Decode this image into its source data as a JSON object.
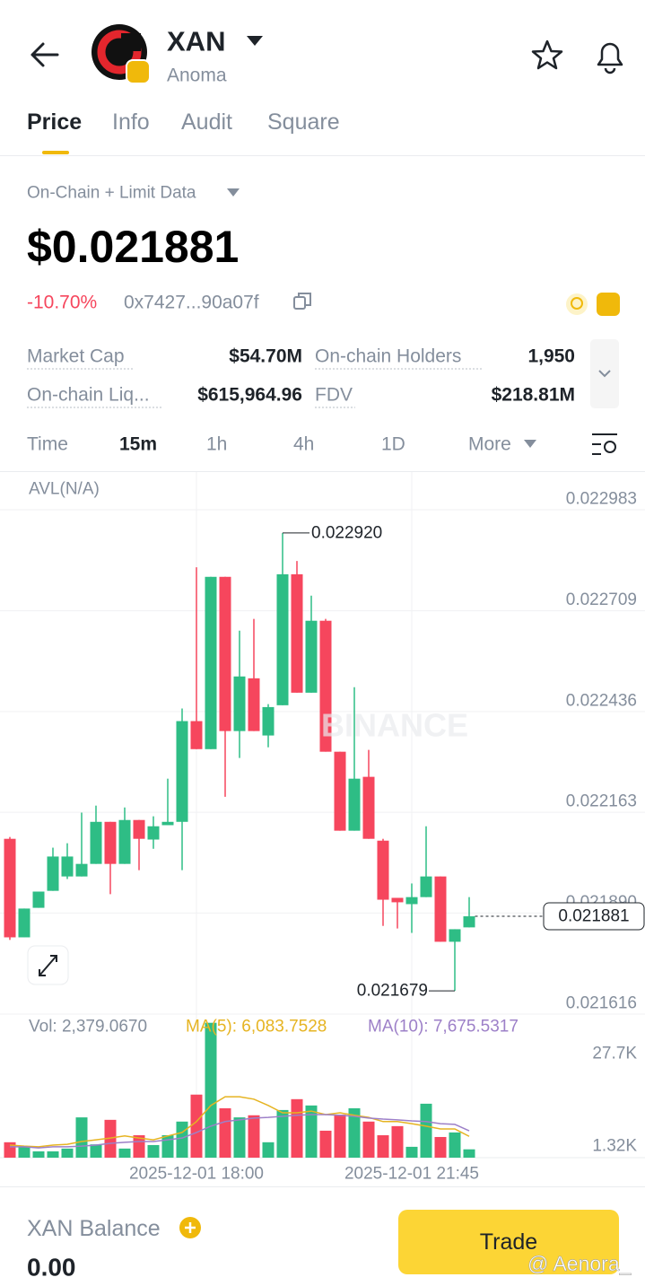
{
  "header": {
    "symbol": "XAN",
    "name": "Anoma"
  },
  "tabs": [
    "Price",
    "Info",
    "Audit",
    "Square"
  ],
  "data_source": "On-Chain + Limit Data",
  "price": "$0.021881",
  "change": "-10.70%",
  "address": "0x7427...90a07f",
  "stats": [
    {
      "label": "Market Cap",
      "value": "$54.70M"
    },
    {
      "label": "On-chain Holders",
      "value": "1,950"
    },
    {
      "label": "On-chain Liq...",
      "value": "$615,964.96"
    },
    {
      "label": "FDV",
      "value": "$218.81M"
    }
  ],
  "intervals": [
    "Time",
    "15m",
    "1h",
    "4h",
    "1D",
    "More"
  ],
  "balance": {
    "label": "XAN Balance",
    "value": "0.00"
  },
  "trade_button": "Trade",
  "watermark": "@ Aenora_",
  "chart_data": {
    "type": "candlestick",
    "indicator": "AVL(N/A)",
    "categories": [
      null,
      null,
      null,
      null,
      null,
      null,
      null,
      null,
      null,
      null,
      null,
      null,
      null,
      "2025-12-01 18:00",
      null,
      null,
      null,
      null,
      null,
      null,
      null,
      null,
      null,
      null,
      null,
      null,
      null,
      null,
      "2025-12-01 21:45",
      null,
      null,
      null,
      null
    ],
    "open": [
      0.022091,
      0.021824,
      0.021904,
      0.02195,
      0.021989,
      0.021989,
      0.022023,
      0.022137,
      0.022023,
      0.022142,
      0.022089,
      0.022128,
      0.022137,
      0.02241,
      0.022334,
      0.022801,
      0.022383,
      0.022526,
      0.022371,
      0.022453,
      0.022808,
      0.022487,
      0.022682,
      0.022327,
      0.022113,
      0.022259,
      0.022086,
      0.021931,
      0.021914,
      0.021933,
      0.021989,
      0.021812,
      0.021851
    ],
    "high": [
      0.022096,
      0.021902,
      0.021948,
      0.022067,
      0.022079,
      0.022162,
      0.022181,
      0.022137,
      0.022176,
      0.022142,
      0.022152,
      0.022254,
      0.022444,
      0.022827,
      0.022801,
      0.022801,
      0.022655,
      0.022687,
      0.022456,
      0.02292,
      0.022844,
      0.02275,
      0.022687,
      0.022327,
      0.022502,
      0.022332,
      0.022091,
      0.021931,
      0.02197,
      0.022125,
      0.021989,
      0.021846,
      0.021933
    ],
    "low": [
      0.021817,
      0.021824,
      0.021904,
      0.02195,
      0.021982,
      0.021989,
      0.022023,
      0.021941,
      0.022023,
      0.022006,
      0.022064,
      0.022128,
      0.022006,
      0.022334,
      0.022334,
      0.022205,
      0.02231,
      0.022383,
      0.022339,
      0.022453,
      0.022487,
      0.022487,
      0.022327,
      0.022113,
      0.022113,
      0.022091,
      0.021855,
      0.021848,
      0.021836,
      0.021933,
      0.021812,
      0.021679,
      0.021851
    ],
    "close": [
      0.021824,
      0.021902,
      0.021948,
      0.022043,
      0.022043,
      0.022023,
      0.022137,
      0.022023,
      0.022142,
      0.022091,
      0.022125,
      0.022137,
      0.02241,
      0.022334,
      0.022801,
      0.022383,
      0.022531,
      0.022383,
      0.022448,
      0.022808,
      0.022487,
      0.022682,
      0.022327,
      0.022113,
      0.022254,
      0.022091,
      0.021926,
      0.021919,
      0.021933,
      0.021989,
      0.021812,
      0.021846,
      0.021881
    ],
    "up_color": "#2ebd85",
    "down_color": "#f6465d",
    "ylim": [
      0.021616,
      0.023085
    ],
    "yticks": [
      0.022983,
      0.022709,
      0.022436,
      0.022163,
      {
        "value": 0.02189,
        "label": "0.021890"
      },
      0.021616
    ],
    "grid": true,
    "high_label": "0.022920",
    "low_label": "0.021679",
    "last_label": "0.021881",
    "volume": {
      "label": "Vol: 2,379.0670",
      "ma5_label": "MA(5): 6,083.7528",
      "ma10_label": "MA(10): 7,675.5317",
      "values": [
        4400,
        3100,
        1800,
        1800,
        2600,
        11500,
        3800,
        10800,
        2600,
        6400,
        3600,
        6400,
        10300,
        18000,
        38500,
        14100,
        11500,
        12100,
        4400,
        13600,
        16700,
        14900,
        7700,
        12300,
        14100,
        10300,
        6400,
        9000,
        3100,
        15400,
        5900,
        7200,
        2379.067
      ],
      "ma5": [
        3600,
        3300,
        3100,
        3600,
        3800,
        4600,
        5100,
        5600,
        6200,
        5600,
        5100,
        6200,
        7200,
        10300,
        14900,
        17400,
        17400,
        16700,
        14900,
        12800,
        12800,
        13300,
        12300,
        12800,
        12100,
        11500,
        10300,
        10300,
        9700,
        9000,
        8200,
        8200,
        6083.7528
      ],
      "ma10": [
        3100,
        3100,
        2800,
        3100,
        3100,
        3300,
        3600,
        4100,
        4400,
        4600,
        4600,
        5100,
        5600,
        7200,
        9000,
        10300,
        10800,
        11300,
        11500,
        11800,
        12100,
        12300,
        12300,
        12100,
        11800,
        11300,
        11000,
        10800,
        10500,
        10300,
        9700,
        9500,
        7675.5317
      ],
      "ma5_color": "#e6b422",
      "ma10_color": "#9d80c8",
      "vlim": [
        0,
        41500
      ],
      "vticks": [
        {
          "value": 27700,
          "label": "27.7K"
        },
        {
          "value": 1320,
          "label": "1.32K"
        }
      ]
    }
  }
}
